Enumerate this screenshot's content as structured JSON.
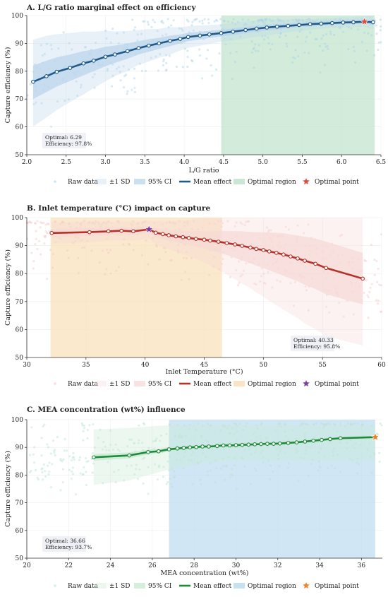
{
  "chart_data": [
    {
      "type": "line",
      "title": "A. L/G ratio marginal effect on efficiency",
      "xlabel": "L/G ratio",
      "ylabel": "Capture efficiency (%)",
      "xlim": [
        2.0,
        6.5
      ],
      "ylim": [
        50,
        100
      ],
      "xticks": [
        "2.0",
        "2.5",
        "3.0",
        "3.5",
        "4.0",
        "4.5",
        "5.0",
        "5.5",
        "6.0",
        "6.5"
      ],
      "yticks": [
        "50",
        "60",
        "70",
        "80",
        "90",
        "100"
      ],
      "colors": {
        "mean": "#1f5a8a",
        "band": "#bcd6ec",
        "raw": "#a9d3e6",
        "optimal_region": "#bfe3cc",
        "optimal_point": "#e14b3b"
      },
      "series": [
        {
          "name": "Mean effect",
          "x": [
            2.08,
            2.25,
            2.38,
            2.55,
            2.72,
            2.85,
            3.0,
            3.12,
            3.28,
            3.42,
            3.55,
            3.68,
            3.82,
            3.95,
            4.05,
            4.2,
            4.32,
            4.47,
            4.62,
            4.78,
            4.92,
            5.05,
            5.18,
            5.32,
            5.46,
            5.6,
            5.74,
            5.88,
            6.02,
            6.15,
            6.29,
            6.4
          ],
          "y": [
            76.2,
            78.2,
            79.8,
            81.2,
            82.8,
            83.8,
            85.2,
            86.0,
            87.2,
            88.3,
            89.2,
            90.0,
            90.9,
            91.6,
            92.3,
            92.8,
            93.2,
            93.7,
            94.2,
            94.8,
            95.3,
            95.7,
            96.0,
            96.3,
            96.6,
            96.9,
            97.1,
            97.3,
            97.5,
            97.6,
            97.8,
            97.6
          ],
          "band_lower": [
            70,
            72.5,
            74.5,
            76.5,
            78.5,
            80,
            81.8,
            83,
            84.5,
            86,
            87,
            88,
            89,
            90,
            90.8,
            91.4,
            91.9,
            92.5,
            93,
            93.6,
            94.2,
            94.6,
            95,
            95.4,
            95.8,
            96.1,
            96.4,
            96.6,
            96.8,
            96.9,
            97.1,
            96.6
          ],
          "band_upper": [
            82,
            83.8,
            85,
            86,
            87.2,
            87.8,
            88.8,
            89.2,
            90,
            90.8,
            91.5,
            92,
            92.8,
            93.2,
            93.8,
            94.2,
            94.5,
            94.9,
            95.4,
            96,
            96.4,
            96.8,
            97,
            97.2,
            97.4,
            97.6,
            97.8,
            98,
            98.2,
            98.3,
            98.5,
            98.5
          ]
        }
      ],
      "optimal_region": [
        4.47,
        6.42
      ],
      "optimal_point": {
        "x": 6.29,
        "y": 97.8
      },
      "annotation": {
        "line1": "Optimal: 6.29",
        "line2": "Efficiency: 97.8%"
      },
      "raw_seed": 11,
      "legend": [
        "Raw data",
        "±1 SD",
        "95% CI",
        "Mean effect",
        "Optimal region",
        "Optimal point"
      ]
    },
    {
      "type": "line",
      "title": "B. Inlet temperature (°C) impact on capture",
      "xlabel": "Inlet Temperature (°C)",
      "ylabel": "Capture efficiency (%)",
      "xlim": [
        30,
        60
      ],
      "ylim": [
        50,
        100
      ],
      "xticks": [
        "30",
        "35",
        "40",
        "45",
        "50",
        "55",
        "60"
      ],
      "yticks": [
        "50",
        "60",
        "70",
        "80",
        "90",
        "100"
      ],
      "colors": {
        "mean": "#b5322b",
        "band": "#f6d9d6",
        "raw": "#f4c7c7",
        "optimal_region": "#f9dfb8",
        "optimal_point": "#7d3f9e"
      },
      "series": [
        {
          "name": "Mean effect",
          "x": [
            32.1,
            35.3,
            36.9,
            38.0,
            39.0,
            40.33,
            40.9,
            41.5,
            42.0,
            42.6,
            43.2,
            43.7,
            44.3,
            45.0,
            45.5,
            46.2,
            46.9,
            47.6,
            48.2,
            48.9,
            49.4,
            50.0,
            50.5,
            51.1,
            51.7,
            52.3,
            52.9,
            53.5,
            54.4,
            55.3,
            58.4
          ],
          "y": [
            94.5,
            94.8,
            95.1,
            95.3,
            95.1,
            95.8,
            94.6,
            94.1,
            93.7,
            93.3,
            93.0,
            92.7,
            92.4,
            92.1,
            91.8,
            91.4,
            90.9,
            90.4,
            89.9,
            89.3,
            88.8,
            88.4,
            87.9,
            87.4,
            86.8,
            86.1,
            85.4,
            84.6,
            83.5,
            82.0,
            78.2
          ],
          "band_lower": [
            93,
            93.4,
            93.8,
            94,
            93.8,
            94.5,
            93,
            92.3,
            91.8,
            91.2,
            90.7,
            90.2,
            89.6,
            89,
            88.3,
            87.5,
            86.6,
            85.6,
            84.7,
            83.7,
            82.8,
            82,
            81.1,
            80.2,
            79.2,
            78.2,
            77.2,
            76,
            74.5,
            72.6,
            69
          ],
          "band_upper": [
            96,
            96.2,
            96.4,
            96.6,
            96.4,
            97,
            96.2,
            95.9,
            95.6,
            95.4,
            95.3,
            95.2,
            95.2,
            95.2,
            95.3,
            95.3,
            95.2,
            95.2,
            95.1,
            94.9,
            94.8,
            94.8,
            94.7,
            94.6,
            94.4,
            94,
            93.6,
            93.2,
            92.5,
            91.4,
            87.4
          ]
        }
      ],
      "optimal_region": [
        32.0,
        46.5
      ],
      "optimal_point": {
        "x": 40.33,
        "y": 95.8
      },
      "annotation": {
        "line1": "Optimal: 40.33",
        "line2": "Efficiency: 95.8%"
      },
      "raw_seed": 23,
      "legend": [
        "Raw data",
        "±1 SD",
        "95% CI",
        "Mean effect",
        "Optimal region",
        "Optimal point"
      ]
    },
    {
      "type": "line",
      "title": "C. MEA concentration (wt%) influence",
      "xlabel": "MEA concentration (wt%)",
      "ylabel": "Capture efficiency (%)",
      "xlim": [
        20,
        37
      ],
      "ylim": [
        50,
        100
      ],
      "xticks": [
        "20",
        "22",
        "24",
        "26",
        "28",
        "30",
        "32",
        "34",
        "36"
      ],
      "yticks": [
        "50",
        "60",
        "70",
        "80",
        "90",
        "100"
      ],
      "colors": {
        "mean": "#1e8a3c",
        "band": "#c8ead2",
        "raw": "#b8e3d2",
        "optimal_region": "#bcdcf0",
        "optimal_point": "#f0822a"
      },
      "series": [
        {
          "name": "Mean effect",
          "x": [
            23.2,
            24.9,
            25.8,
            26.3,
            26.8,
            27.2,
            27.5,
            27.8,
            28.1,
            28.4,
            28.7,
            29.1,
            29.4,
            29.7,
            30.0,
            30.3,
            30.6,
            30.9,
            31.2,
            31.5,
            31.8,
            32.1,
            32.5,
            32.9,
            33.3,
            33.7,
            34.1,
            34.5,
            35.0,
            36.66
          ],
          "y": [
            86.4,
            87.1,
            88.3,
            88.6,
            89.3,
            89.6,
            89.8,
            90.0,
            90.1,
            90.3,
            90.3,
            90.5,
            90.7,
            90.7,
            90.8,
            90.9,
            91.0,
            91.1,
            91.2,
            91.3,
            91.3,
            91.4,
            91.6,
            91.8,
            92.1,
            92.4,
            92.7,
            93.0,
            93.3,
            93.7
          ],
          "band_lower": [
            85.2,
            86.0,
            87.4,
            87.8,
            88.5,
            88.9,
            89.1,
            89.4,
            89.5,
            89.7,
            89.7,
            89.9,
            90.1,
            90.1,
            90.2,
            90.3,
            90.4,
            90.5,
            90.6,
            90.7,
            90.7,
            90.8,
            91.0,
            91.2,
            91.5,
            91.8,
            92.1,
            92.4,
            92.7,
            93.1
          ],
          "band_upper": [
            87.6,
            88.2,
            89.2,
            89.4,
            90.1,
            90.3,
            90.5,
            90.6,
            90.7,
            90.9,
            90.9,
            91.1,
            91.3,
            91.3,
            91.4,
            91.5,
            91.6,
            91.7,
            91.8,
            91.9,
            91.9,
            92.0,
            92.2,
            92.4,
            92.7,
            93.0,
            93.3,
            93.6,
            93.9,
            94.3
          ],
          "sd_lower": [
            76.5,
            78,
            80,
            81,
            82,
            82.5,
            83,
            83.5,
            84,
            84.5,
            84.5,
            85,
            85,
            85,
            85,
            85,
            85,
            85,
            85,
            85,
            85,
            85,
            85,
            85,
            85,
            85,
            85,
            85,
            85,
            85
          ],
          "sd_upper": [
            96.5,
            97,
            97.5,
            97.8,
            98,
            98,
            98,
            98,
            98,
            98,
            98,
            98,
            98,
            98,
            98,
            98,
            98,
            98,
            98,
            98,
            98,
            98,
            98,
            98,
            98,
            98,
            98,
            98,
            98,
            98
          ]
        }
      ],
      "optimal_region": [
        26.8,
        36.66
      ],
      "optimal_point": {
        "x": 36.66,
        "y": 93.7
      },
      "annotation": {
        "line1": "Optimal: 36.66",
        "line2": "Efficiency: 93.7%"
      },
      "raw_seed": 37,
      "legend": [
        "Raw data",
        "±1 SD",
        "95% CI",
        "Mean effect",
        "Optimal region",
        "Optimal point"
      ]
    }
  ]
}
